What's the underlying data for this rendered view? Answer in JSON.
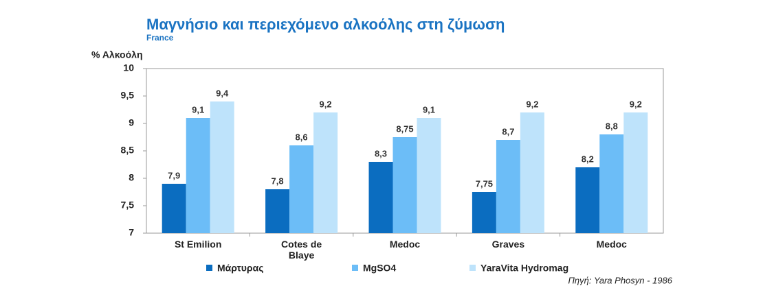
{
  "chart_data": {
    "type": "bar",
    "title": "Μαγνήσιο και περιεχόμενο αλκοόλης στη ζύμωση",
    "subtitle": "France",
    "y_label": "% Αλκοόλη",
    "source": "Πηγή: Yara Phosyn - 1986",
    "categories": [
      "St Emilion",
      "Cotes de Blaye",
      "Medoc",
      "Graves",
      "Medoc"
    ],
    "series": [
      {
        "name": "Μάρτυρας",
        "color": "#0b6dc0",
        "values": [
          7.9,
          7.8,
          8.3,
          7.75,
          8.2
        ],
        "value_labels": [
          "7,9",
          "7,8",
          "8,3",
          "7,75",
          "8,2"
        ]
      },
      {
        "name": "MgSO4",
        "color": "#6cbdf7",
        "values": [
          9.1,
          8.6,
          8.75,
          8.7,
          8.8
        ],
        "value_labels": [
          "9,1",
          "8,6",
          "8,75",
          "8,7",
          "8,8"
        ]
      },
      {
        "name": "YaraVita Hydromag",
        "color": "#bee3fb",
        "values": [
          9.4,
          9.2,
          9.1,
          9.2,
          9.2
        ],
        "value_labels": [
          "9,4",
          "9,2",
          "9,1",
          "9,2",
          "9,2"
        ]
      }
    ],
    "ylim": [
      7,
      10
    ],
    "yticks": [
      7,
      {
        "value": 7.5,
        "label": "7,5"
      },
      8,
      {
        "value": 8.5,
        "label": "8,5"
      },
      9,
      {
        "value": 9.5,
        "label": "9,5"
      },
      10
    ],
    "grid": false
  }
}
